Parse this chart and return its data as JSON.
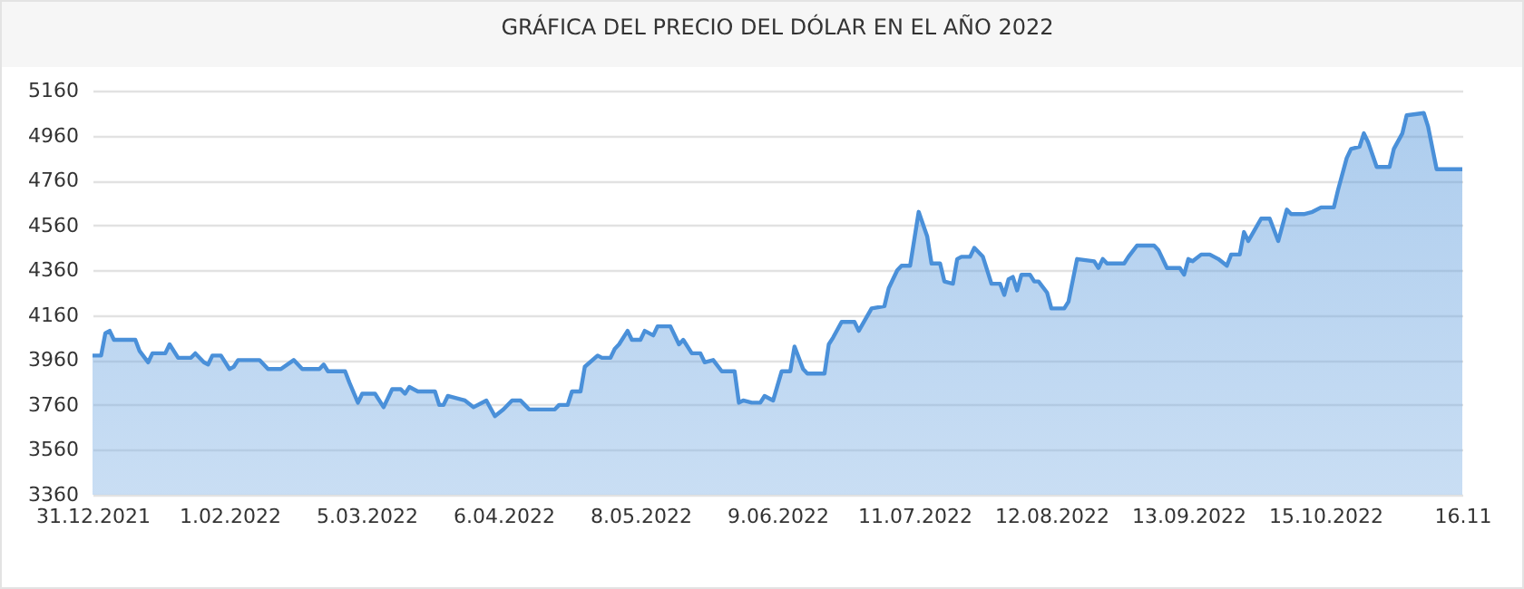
{
  "chart_data": {
    "type": "area",
    "title": "GRÁFICA DEL PRECIO DEL DÓLAR EN EL AÑO 2022",
    "x": [
      "2021-12-31",
      "2022-01-02",
      "2022-01-03",
      "2022-01-04",
      "2022-01-05",
      "2022-01-10",
      "2022-01-11",
      "2022-01-13",
      "2022-01-14",
      "2022-01-17",
      "2022-01-18",
      "2022-01-20",
      "2022-01-23",
      "2022-01-24",
      "2022-01-26",
      "2022-01-27",
      "2022-01-28",
      "2022-01-30",
      "2022-02-01",
      "2022-02-02",
      "2022-02-03",
      "2022-02-08",
      "2022-02-10",
      "2022-02-13",
      "2022-02-16",
      "2022-02-18",
      "2022-02-22",
      "2022-02-23",
      "2022-02-24",
      "2022-02-28",
      "2022-03-01",
      "2022-03-03",
      "2022-03-04",
      "2022-03-07",
      "2022-03-09",
      "2022-03-11",
      "2022-03-13",
      "2022-03-14",
      "2022-03-15",
      "2022-03-17",
      "2022-03-21",
      "2022-03-22",
      "2022-03-23",
      "2022-03-24",
      "2022-03-28",
      "2022-03-30",
      "2022-04-02",
      "2022-04-04",
      "2022-04-06",
      "2022-04-08",
      "2022-04-10",
      "2022-04-11",
      "2022-04-12",
      "2022-04-18",
      "2022-04-19",
      "2022-04-21",
      "2022-04-22",
      "2022-04-24",
      "2022-04-25",
      "2022-04-28",
      "2022-04-29",
      "2022-05-01",
      "2022-05-02",
      "2022-05-03",
      "2022-05-05",
      "2022-05-06",
      "2022-05-08",
      "2022-05-09",
      "2022-05-11",
      "2022-05-12",
      "2022-05-15",
      "2022-05-17",
      "2022-05-18",
      "2022-05-20",
      "2022-05-22",
      "2022-05-23",
      "2022-05-25",
      "2022-05-27",
      "2022-05-30",
      "2022-05-31",
      "2022-06-01",
      "2022-06-03",
      "2022-06-05",
      "2022-06-06",
      "2022-06-08",
      "2022-06-10",
      "2022-06-12",
      "2022-06-13",
      "2022-06-15",
      "2022-06-16",
      "2022-06-20",
      "2022-06-21",
      "2022-06-22",
      "2022-06-24",
      "2022-06-27",
      "2022-06-28",
      "2022-07-01",
      "2022-07-04",
      "2022-07-05",
      "2022-07-07",
      "2022-07-08",
      "2022-07-10",
      "2022-07-12",
      "2022-07-14",
      "2022-07-15",
      "2022-07-17",
      "2022-07-18",
      "2022-07-20",
      "2022-07-21",
      "2022-07-22",
      "2022-07-24",
      "2022-07-25",
      "2022-07-27",
      "2022-07-29",
      "2022-07-31",
      "2022-08-01",
      "2022-08-02",
      "2022-08-03",
      "2022-08-04",
      "2022-08-05",
      "2022-08-07",
      "2022-08-08",
      "2022-08-09",
      "2022-08-11",
      "2022-08-12",
      "2022-08-15",
      "2022-08-16",
      "2022-08-18",
      "2022-08-22",
      "2022-08-23",
      "2022-08-24",
      "2022-08-25",
      "2022-08-29",
      "2022-08-30",
      "2022-09-01",
      "2022-09-05",
      "2022-09-06",
      "2022-09-08",
      "2022-09-11",
      "2022-09-12",
      "2022-09-13",
      "2022-09-14",
      "2022-09-16",
      "2022-09-18",
      "2022-09-20",
      "2022-09-22",
      "2022-09-23",
      "2022-09-25",
      "2022-09-26",
      "2022-09-27",
      "2022-09-30",
      "2022-10-02",
      "2022-10-04",
      "2022-10-06",
      "2022-10-07",
      "2022-10-10",
      "2022-10-12",
      "2022-10-14",
      "2022-10-17",
      "2022-10-18",
      "2022-10-20",
      "2022-10-21",
      "2022-10-23",
      "2022-10-24",
      "2022-10-25",
      "2022-10-27",
      "2022-10-30",
      "2022-10-31",
      "2022-11-02",
      "2022-11-03",
      "2022-11-07",
      "2022-11-08",
      "2022-11-10",
      "2022-11-16"
    ],
    "series": [
      {
        "color": "#4a90d9",
        "values": [
          3980,
          3980,
          4080,
          4090,
          4050,
          4050,
          4000,
          3950,
          3990,
          3990,
          4030,
          3970,
          3970,
          3990,
          3950,
          3940,
          3980,
          3980,
          3920,
          3930,
          3960,
          3960,
          3920,
          3920,
          3960,
          3920,
          3920,
          3940,
          3910,
          3910,
          3860,
          3770,
          3810,
          3810,
          3750,
          3830,
          3830,
          3810,
          3840,
          3820,
          3820,
          3760,
          3760,
          3800,
          3780,
          3750,
          3780,
          3710,
          3740,
          3780,
          3780,
          3760,
          3740,
          3740,
          3760,
          3760,
          3820,
          3820,
          3930,
          3980,
          3970,
          3970,
          4010,
          4030,
          4090,
          4050,
          4050,
          4090,
          4070,
          4110,
          4110,
          4030,
          4050,
          3990,
          3990,
          3950,
          3960,
          3910,
          3910,
          3770,
          3780,
          3770,
          3770,
          3800,
          3780,
          3910,
          3910,
          4020,
          3920,
          3900,
          3900,
          4030,
          4060,
          4130,
          4130,
          4090,
          4190,
          4200,
          4280,
          4360,
          4380,
          4380,
          4620,
          4510,
          4390,
          4390,
          4310,
          4300,
          4410,
          4420,
          4420,
          4460,
          4420,
          4300,
          4300,
          4250,
          4320,
          4330,
          4270,
          4340,
          4340,
          4310,
          4310,
          4260,
          4190,
          4190,
          4220,
          4410,
          4400,
          4370,
          4410,
          4390,
          4390,
          4420,
          4470,
          4470,
          4450,
          4370,
          4370,
          4340,
          4410,
          4400,
          4430,
          4430,
          4410,
          4380,
          4430,
          4430,
          4530,
          4490,
          4590,
          4590,
          4490,
          4630,
          4610,
          4610,
          4620,
          4640,
          4640,
          4720,
          4860,
          4900,
          4910,
          4970,
          4930,
          4820,
          4820,
          4900,
          4970,
          5050,
          5060,
          5000,
          4810,
          4810
        ]
      }
    ],
    "xlim": [
      "2021-12-31",
      "2022-11-16"
    ],
    "xticks": [
      {
        "value": "2021-12-31",
        "label": "31.12.2021"
      },
      {
        "value": "2022-02-01",
        "label": "1.02.2022"
      },
      {
        "value": "2022-03-05",
        "label": "5.03.2022"
      },
      {
        "value": "2022-04-06",
        "label": "6.04.2022"
      },
      {
        "value": "2022-05-08",
        "label": "8.05.2022"
      },
      {
        "value": "2022-06-09",
        "label": "9.06.2022"
      },
      {
        "value": "2022-07-11",
        "label": "11.07.2022"
      },
      {
        "value": "2022-08-12",
        "label": "12.08.2022"
      },
      {
        "value": "2022-09-13",
        "label": "13.09.2022"
      },
      {
        "value": "2022-10-15",
        "label": "15.10.2022"
      },
      {
        "value": "2022-11-16",
        "label": "16.11"
      }
    ],
    "ylim": [
      3360,
      5160
    ],
    "yticks": [
      3360,
      3560,
      3760,
      3960,
      4160,
      4360,
      4560,
      4760,
      4960,
      5160
    ],
    "grid": "y",
    "marker": "none"
  }
}
